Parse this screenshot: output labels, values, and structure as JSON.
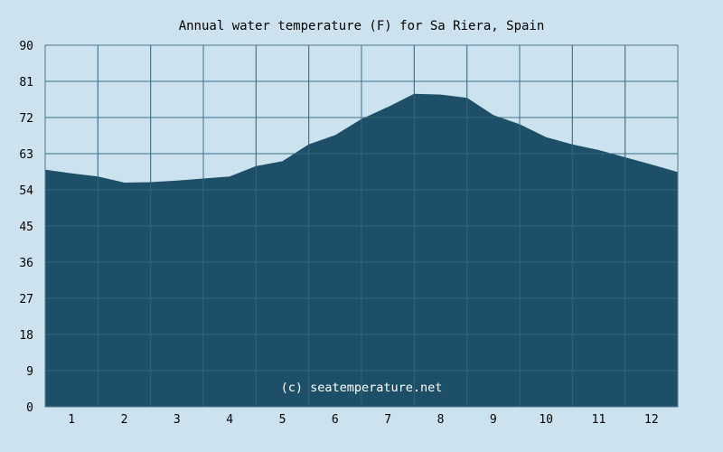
{
  "chart_data": {
    "type": "area",
    "title": "Annual water temperature (F) for Sa Riera, Spain",
    "xlabel": "",
    "ylabel": "",
    "x_categories": [
      "1",
      "2",
      "3",
      "4",
      "5",
      "6",
      "7",
      "8",
      "9",
      "10",
      "11",
      "12"
    ],
    "x_range": [
      0.5,
      12.5
    ],
    "ylim": [
      0,
      90
    ],
    "y_ticks": [
      "0",
      "9",
      "18",
      "27",
      "36",
      "45",
      "54",
      "63",
      "72",
      "81",
      "90"
    ],
    "grid": true,
    "colors": {
      "background": "#cce2ee",
      "area": "#1d5068",
      "grid": "#4f7a93"
    },
    "series": [
      {
        "x": [
          0.5,
          1.0,
          1.5,
          2.0,
          2.5,
          3.0,
          3.5,
          4.0,
          4.5,
          5.0,
          5.5,
          6.0,
          6.5,
          7.0,
          7.5,
          8.0,
          8.5,
          9.0,
          9.5,
          10.0,
          10.5,
          11.0,
          11.5,
          12.0,
          12.5
        ],
        "values": [
          58.9,
          58.0,
          57.2,
          55.7,
          55.8,
          56.2,
          56.7,
          57.2,
          59.8,
          61.0,
          65.2,
          67.5,
          71.5,
          74.5,
          77.8,
          77.6,
          76.8,
          72.5,
          70.2,
          67.0,
          65.2,
          63.8,
          62.0,
          60.2,
          58.3
        ]
      }
    ]
  },
  "watermark": "(c) seatemperature.net"
}
